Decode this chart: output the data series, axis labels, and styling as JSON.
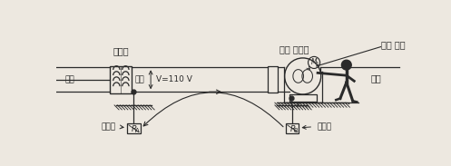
{
  "bg_color": "#ede8e0",
  "line_color": "#2a2a2a",
  "title_transformer": "변압기",
  "label_high": "고압",
  "label_low": "저압",
  "label_voltage": "V=110 V",
  "label_motor": "저압 전동기",
  "label_leak": "누전 사고",
  "label_human": "인체",
  "label_ground1": "접지극",
  "label_ground2": "접지극",
  "label_RA": "R",
  "label_RA_sub": "A",
  "label_RB": "R",
  "label_RB_sub": "B",
  "fig_width": 4.97,
  "fig_height": 1.83,
  "dpi": 100
}
